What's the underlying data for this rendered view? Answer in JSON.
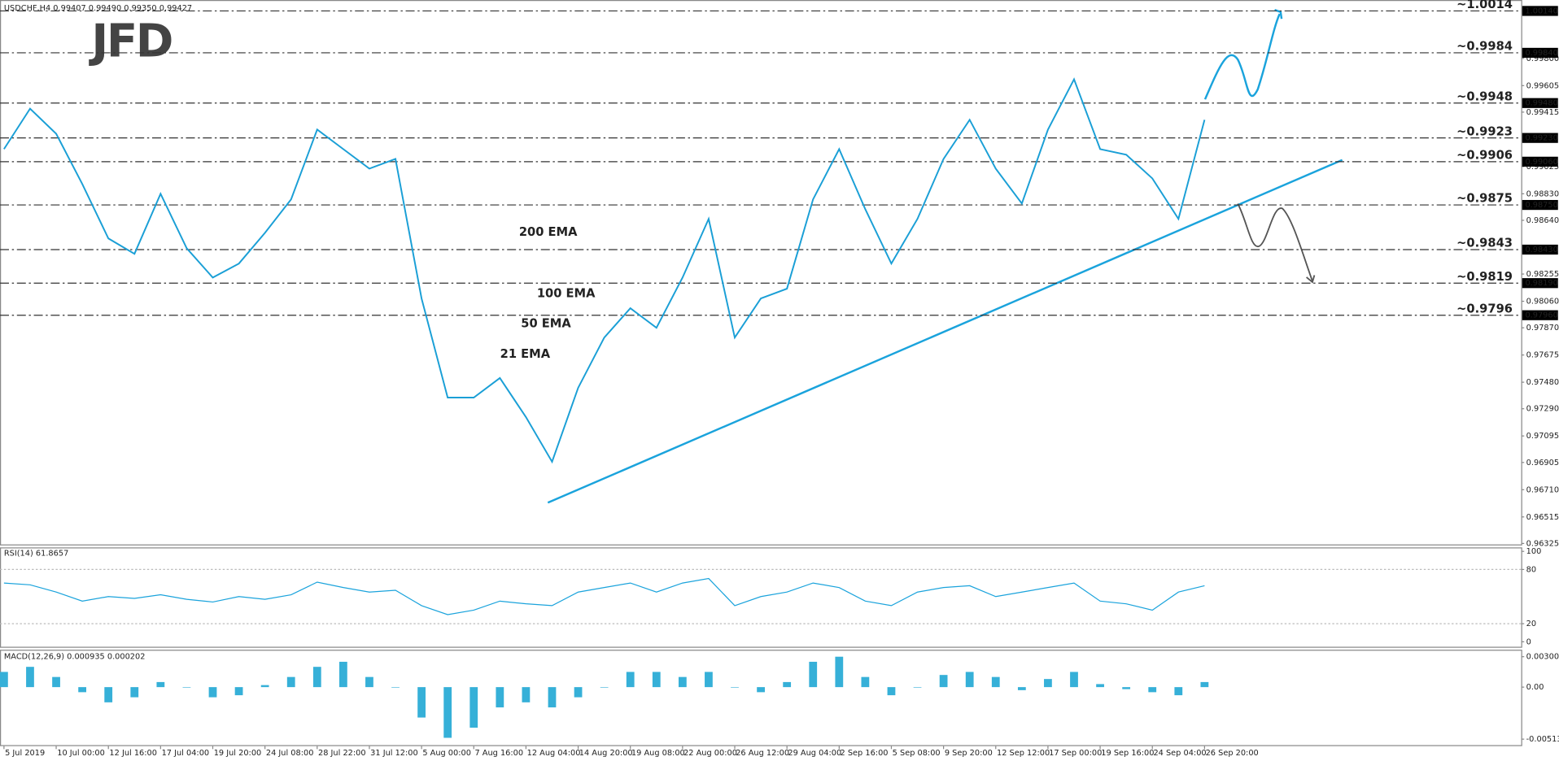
{
  "header": {
    "title": "USDCHF,H4  0.99407 0.99490 0.99350 0.99427",
    "logo": "JFD"
  },
  "chart_data": [
    {
      "type": "line",
      "categories": [
        "5 Jul 2019",
        null,
        "10 Jul 00:00",
        null,
        "12 Jul 16:00",
        null,
        "17 Jul 04:00",
        null,
        "19 Jul 20:00",
        null,
        "24 Jul 08:00",
        null,
        "28 Jul 22:00",
        null,
        "31 Jul 12:00",
        null,
        "5 Aug 00:00",
        null,
        "7 Aug 16:00",
        null,
        "12 Aug 04:00",
        null,
        "14 Aug 20:00",
        null,
        "19 Aug 08:00",
        null,
        "22 Aug 00:00",
        null,
        "26 Aug 12:00",
        null,
        "29 Aug 04:00",
        null,
        "2 Sep 16:00",
        null,
        "5 Sep 08:00",
        null,
        "9 Sep 20:00",
        null,
        "12 Sep 12:00",
        null,
        "17 Sep 00:00",
        null,
        "19 Sep 16:00",
        null,
        "24 Sep 04:00",
        null,
        "26 Sep 20:00"
      ],
      "values": [
        0.9915,
        0.9944,
        0.9926,
        0.989,
        0.9851,
        0.984,
        0.9883,
        0.9844,
        0.9823,
        0.9833,
        0.9855,
        0.9879,
        0.9929,
        0.9915,
        0.9901,
        0.9908,
        0.9808,
        0.9737,
        0.9737,
        0.9751,
        0.9723,
        0.9691,
        0.9744,
        0.978,
        0.9801,
        0.9787,
        0.9823,
        0.9865,
        0.978,
        0.9808,
        0.9815,
        0.9879,
        0.9915,
        0.9872,
        0.9833,
        0.9865,
        0.9908,
        0.9936,
        0.9901,
        0.9876,
        0.9929,
        0.9965,
        0.9915,
        0.9911,
        0.9894,
        0.9865,
        0.9936
      ],
      "color": "#1a9fd6",
      "ylim": [
        0.96325,
        1.0014
      ],
      "yticks": [
        {
          "value": 0.998,
          "label": "0.99800"
        },
        {
          "value": 0.99605,
          "label": "0.99605"
        },
        {
          "value": 0.99415,
          "label": "0.99415"
        },
        {
          "value": 0.99025,
          "label": "0.99025"
        },
        {
          "value": 0.9883,
          "label": "0.98830"
        },
        {
          "value": 0.9864,
          "label": "0.98640"
        },
        {
          "value": 0.98255,
          "label": "0.98255"
        },
        {
          "value": 0.9806,
          "label": "0.98060"
        },
        {
          "value": 0.9787,
          "label": "0.97870"
        },
        {
          "value": 0.97675,
          "label": "0.97675"
        },
        {
          "value": 0.9748,
          "label": "0.97480"
        },
        {
          "value": 0.9729,
          "label": "0.97290"
        },
        {
          "value": 0.97095,
          "label": "0.97095"
        },
        {
          "value": 0.96905,
          "label": "0.96905"
        },
        {
          "value": 0.9671,
          "label": "0.96710"
        },
        {
          "value": 0.96515,
          "label": "0.96515"
        },
        {
          "value": 0.96325,
          "label": "0.96325"
        }
      ],
      "levels": [
        {
          "value": 1.0014,
          "label": "~1.0014",
          "axis_label": "1.00140",
          "color": "#1aa3dc"
        },
        {
          "value": 0.9984,
          "label": "~0.9984",
          "axis_label": "0.99840",
          "color": "#1aa3dc"
        },
        {
          "value": 0.9948,
          "label": "~0.9948",
          "axis_label": "0.99480",
          "color": "#1aa3dc"
        },
        {
          "value": 0.9923,
          "label": "~0.9923",
          "axis_label": "0.99230",
          "color": "#1aa3dc"
        },
        {
          "value": 0.9906,
          "label": "~0.9906",
          "axis_label": "0.99060",
          "color": "#1aa3dc"
        },
        {
          "value": 0.9875,
          "label": "~0.9875",
          "axis_label": "0.98750",
          "color": "#444444"
        },
        {
          "value": 0.9843,
          "label": "~0.9843",
          "axis_label": "0.98430",
          "color": "#444444"
        },
        {
          "value": 0.9819,
          "label": "~0.9819",
          "axis_label": "0.98190",
          "color": "#444444"
        },
        {
          "value": 0.9796,
          "label": "~0.9796",
          "axis_label": "0.97960",
          "color": "#444444"
        }
      ],
      "annotations": [
        {
          "text": "200 EMA",
          "color": "#111111"
        },
        {
          "text": "100 EMA",
          "color": "#22cc22"
        },
        {
          "text": "50 EMA",
          "color": "#e02020"
        },
        {
          "text": "21 EMA",
          "color": "#f0c419"
        }
      ]
    },
    {
      "type": "line",
      "title": "RSI(14) 61.8657",
      "values": [
        65,
        63,
        55,
        45,
        50,
        48,
        52,
        47,
        44,
        50,
        47,
        52,
        66,
        60,
        55,
        57,
        40,
        30,
        35,
        45,
        42,
        40,
        55,
        60,
        65,
        55,
        65,
        70,
        40,
        50,
        55,
        65,
        60,
        45,
        40,
        55,
        60,
        62,
        50,
        55,
        60,
        65,
        45,
        42,
        35,
        55,
        62
      ],
      "color": "#1aa3dc",
      "ylim": [
        0,
        100
      ],
      "yticks": [
        0,
        20,
        80,
        100
      ]
    },
    {
      "type": "bar",
      "title": "MACD(12,26,9) 0.000935 0.000202",
      "values": [
        0.0015,
        0.002,
        0.001,
        -0.0005,
        -0.0015,
        -0.001,
        0.0005,
        0,
        -0.001,
        -0.0008,
        0.0002,
        0.001,
        0.002,
        0.0025,
        0.001,
        0,
        -0.003,
        -0.005,
        -0.004,
        -0.002,
        -0.0015,
        -0.002,
        -0.001,
        0,
        0.0015,
        0.0015,
        0.001,
        0.0015,
        0,
        -0.0005,
        0.0005,
        0.0025,
        0.003,
        0.001,
        -0.0008,
        0,
        0.0012,
        0.0015,
        0.001,
        -0.0003,
        0.0008,
        0.0015,
        0.0003,
        -0.0002,
        -0.0005,
        -0.0008,
        0.0005
      ],
      "color": "#36b0d8",
      "ylim": [
        -0.005131,
        0.003002
      ],
      "yticks": [
        -0.005131,
        {
          "value": 0,
          "label": "0.00"
        },
        0.003002
      ]
    }
  ]
}
